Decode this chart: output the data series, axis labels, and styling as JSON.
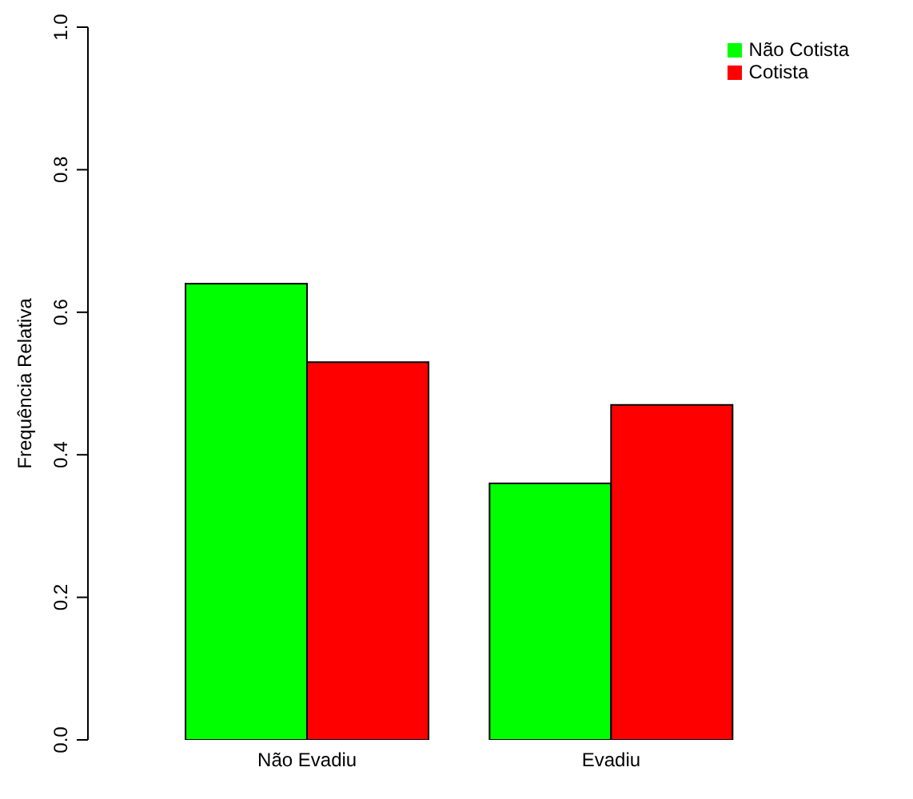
{
  "chart_data": {
    "type": "bar",
    "ylabel": "Frequência Relativa",
    "categories": [
      "Não Evadiu",
      "Evadiu"
    ],
    "series": [
      {
        "name": "Não Cotista",
        "color": "#00ff00",
        "values": [
          0.64,
          0.36
        ]
      },
      {
        "name": "Cotista",
        "color": "#ff0000",
        "values": [
          0.53,
          0.47
        ]
      }
    ],
    "ylim": [
      0,
      1
    ],
    "yticks": [
      {
        "value": 0,
        "label": "0.0"
      },
      0.2,
      0.4,
      0.6,
      0.8,
      {
        "value": 1,
        "label": "1.0"
      }
    ],
    "legend": "top right"
  }
}
